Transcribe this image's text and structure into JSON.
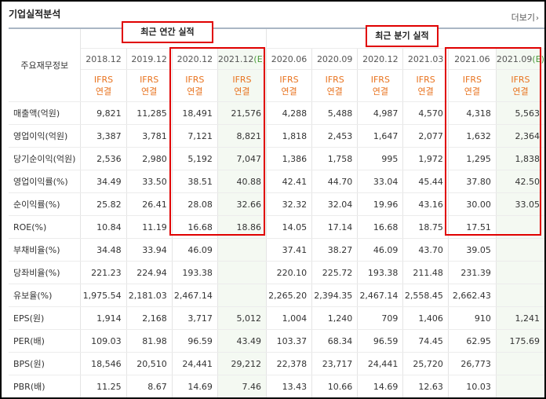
{
  "title": "기업실적분석",
  "more_label": "더보기",
  "more_icon": "chevron-right-icon",
  "header": {
    "row_label": "주요재무정보",
    "group_annual": "최근 연간 실적",
    "group_quarter": "최근 분기 실적",
    "periods": [
      {
        "label": "2018.12",
        "est": ""
      },
      {
        "label": "2019.12",
        "est": ""
      },
      {
        "label": "2020.12",
        "est": ""
      },
      {
        "label": "2021.12",
        "est": "(E)"
      },
      {
        "label": "2020.06",
        "est": ""
      },
      {
        "label": "2020.09",
        "est": ""
      },
      {
        "label": "2020.12",
        "est": ""
      },
      {
        "label": "2021.03",
        "est": ""
      },
      {
        "label": "2021.06",
        "est": ""
      },
      {
        "label": "2021.09",
        "est": "(E)"
      }
    ],
    "ifrs_line1": "IFRS",
    "ifrs_line2": "연결"
  },
  "rows": [
    {
      "label": "매출액(억원)",
      "values": [
        "9,821",
        "11,285",
        "18,491",
        "21,576",
        "4,288",
        "5,488",
        "4,987",
        "4,570",
        "4,318",
        "5,563"
      ]
    },
    {
      "label": "영업이익(억원)",
      "values": [
        "3,387",
        "3,781",
        "7,121",
        "8,821",
        "1,818",
        "2,453",
        "1,647",
        "2,077",
        "1,632",
        "2,364"
      ]
    },
    {
      "label": "당기순이익(억원)",
      "values": [
        "2,536",
        "2,980",
        "5,192",
        "7,047",
        "1,386",
        "1,758",
        "995",
        "1,972",
        "1,295",
        "1,838"
      ]
    },
    {
      "label": "영업이익률(%)",
      "values": [
        "34.49",
        "33.50",
        "38.51",
        "40.88",
        "42.41",
        "44.70",
        "33.04",
        "45.44",
        "37.80",
        "42.50"
      ]
    },
    {
      "label": "순이익률(%)",
      "values": [
        "25.82",
        "26.41",
        "28.08",
        "32.66",
        "32.32",
        "32.04",
        "19.96",
        "43.16",
        "30.00",
        "33.05"
      ]
    },
    {
      "label": "ROE(%)",
      "values": [
        "10.84",
        "11.19",
        "16.68",
        "18.86",
        "14.05",
        "17.14",
        "16.68",
        "18.75",
        "17.51",
        ""
      ]
    },
    {
      "label": "부채비율(%)",
      "values": [
        "34.48",
        "33.94",
        "46.09",
        "",
        "37.41",
        "38.27",
        "46.09",
        "43.70",
        "39.05",
        ""
      ]
    },
    {
      "label": "당좌비율(%)",
      "values": [
        "221.23",
        "224.94",
        "193.38",
        "",
        "220.10",
        "225.72",
        "193.38",
        "211.48",
        "231.39",
        ""
      ]
    },
    {
      "label": "유보율(%)",
      "values": [
        "1,975.54",
        "2,181.03",
        "2,467.14",
        "",
        "2,265.20",
        "2,394.35",
        "2,467.14",
        "2,558.45",
        "2,662.43",
        ""
      ]
    },
    {
      "label": "EPS(원)",
      "values": [
        "1,914",
        "2,168",
        "3,717",
        "5,012",
        "1,004",
        "1,240",
        "709",
        "1,406",
        "910",
        "1,241"
      ]
    },
    {
      "label": "PER(배)",
      "values": [
        "109.03",
        "81.98",
        "96.59",
        "43.49",
        "103.37",
        "68.34",
        "96.59",
        "74.45",
        "62.95",
        "175.69"
      ]
    },
    {
      "label": "BPS(원)",
      "values": [
        "18,546",
        "20,510",
        "24,441",
        "29,212",
        "22,378",
        "23,717",
        "24,441",
        "25,720",
        "26,773",
        ""
      ]
    },
    {
      "label": "PBR(배)",
      "values": [
        "11.25",
        "8.67",
        "14.69",
        "7.46",
        "13.43",
        "10.66",
        "14.69",
        "12.63",
        "10.03",
        ""
      ]
    }
  ],
  "colors": {
    "ifrs": "#e8731f",
    "highlight_box": "#e00000",
    "estimate_bg": "#f4f9f2",
    "estimate_mark": "#4a9a3a"
  }
}
